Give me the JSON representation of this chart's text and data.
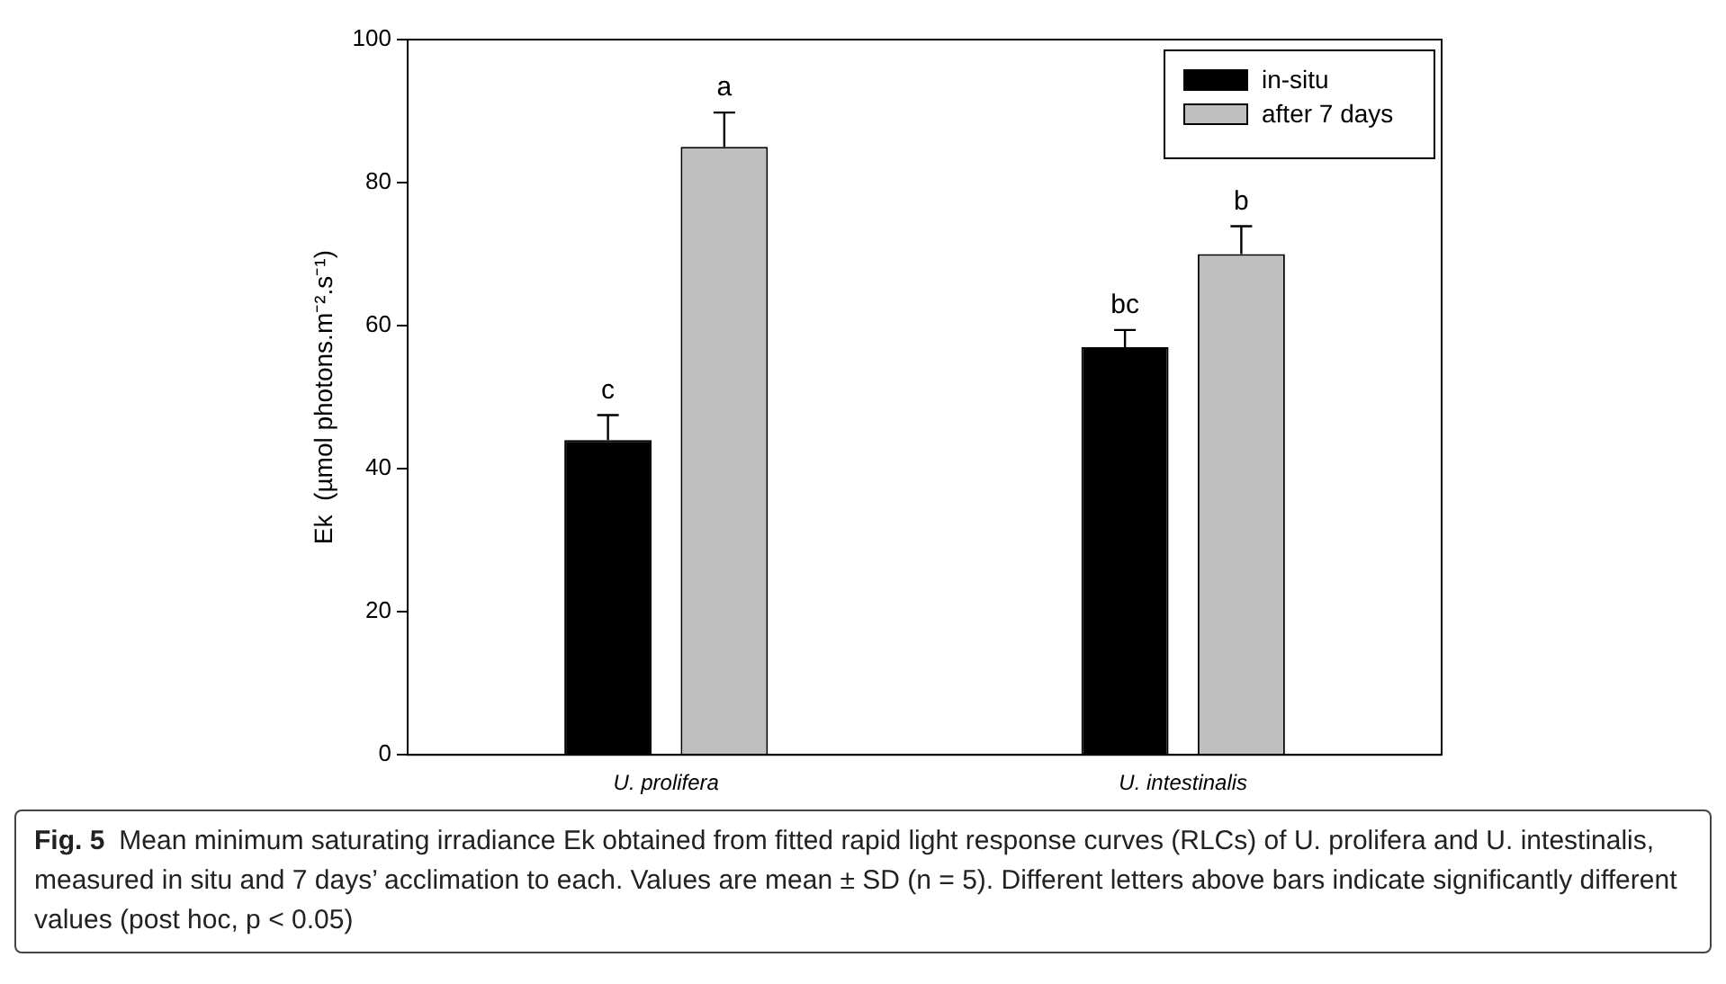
{
  "chart_data": {
    "type": "bar",
    "categories": [
      "U. prolifera",
      "U. intestinalis"
    ],
    "ylabel": "Ek  (µmol photons.m⁻².s⁻¹)",
    "series": [
      {
        "name": "in-situ",
        "color": "#000000",
        "values": [
          44,
          57
        ],
        "errors": [
          3.5,
          2.4
        ],
        "value_labels": [
          "c",
          "bc"
        ]
      },
      {
        "name": "after 7 days",
        "color": "#bfbfbf",
        "values": [
          85,
          70
        ],
        "errors": [
          4.8,
          3.9
        ],
        "value_labels": [
          "a",
          "b"
        ]
      }
    ],
    "ylim": [
      0,
      100
    ],
    "yticks": [
      0,
      20,
      40,
      60,
      80,
      100
    ],
    "grid": false,
    "legend": "top right",
    "annotations": [
      "Fig. 5",
      "Mean minimum saturating irradiance Ek obtained from fitted rapid light response curves (RLCs) of U. prolifera and U. intestinalis, measured in situ and 7 days’ acclimation to each. Values are mean ± SD (n = 5). Different letters above bars indicate significantly different values (post hoc, p < 0.05)"
    ]
  }
}
